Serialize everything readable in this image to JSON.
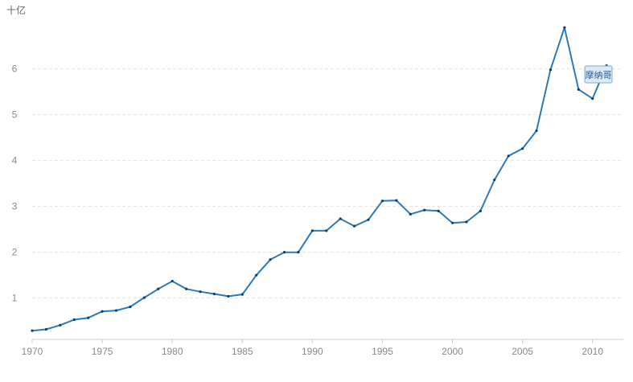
{
  "chart_data": {
    "type": "line",
    "title": "",
    "xlabel": "",
    "ylabel": "十亿",
    "x": [
      1970,
      1971,
      1972,
      1973,
      1974,
      1975,
      1976,
      1977,
      1978,
      1979,
      1980,
      1981,
      1982,
      1983,
      1984,
      1985,
      1986,
      1987,
      1988,
      1989,
      1990,
      1991,
      1992,
      1993,
      1994,
      1995,
      1996,
      1997,
      1998,
      1999,
      2000,
      2001,
      2002,
      2003,
      2004,
      2005,
      2006,
      2007,
      2008,
      2009,
      2010,
      2011
    ],
    "series": [
      {
        "name": "摩纳哥",
        "values": [
          0.29,
          0.32,
          0.41,
          0.53,
          0.57,
          0.71,
          0.73,
          0.81,
          1.01,
          1.2,
          1.37,
          1.2,
          1.14,
          1.09,
          1.04,
          1.08,
          1.5,
          1.84,
          2.0,
          2.0,
          2.47,
          2.47,
          2.73,
          2.57,
          2.71,
          3.12,
          3.13,
          2.83,
          2.92,
          2.9,
          2.64,
          2.66,
          2.9,
          3.58,
          4.1,
          4.26,
          4.65,
          5.98,
          6.9,
          5.55,
          5.35,
          6.07
        ]
      }
    ],
    "xticks": [
      "1970",
      "1975",
      "1980",
      "1985",
      "1990",
      "1995",
      "2000",
      "2005",
      "2010"
    ],
    "yticks": [
      "1",
      "2",
      "3",
      "4",
      "5",
      "6"
    ],
    "xlim": [
      1970,
      2012.2
    ],
    "ylim": [
      0.1,
      7.15
    ],
    "grid": true,
    "legend": "none",
    "colors": {
      "line": "#2b7bb9",
      "grid": "#e2e2e2",
      "axis": "#cccccc",
      "label_bg": "#dde9f6",
      "label_border": "#7fa9d3"
    }
  }
}
